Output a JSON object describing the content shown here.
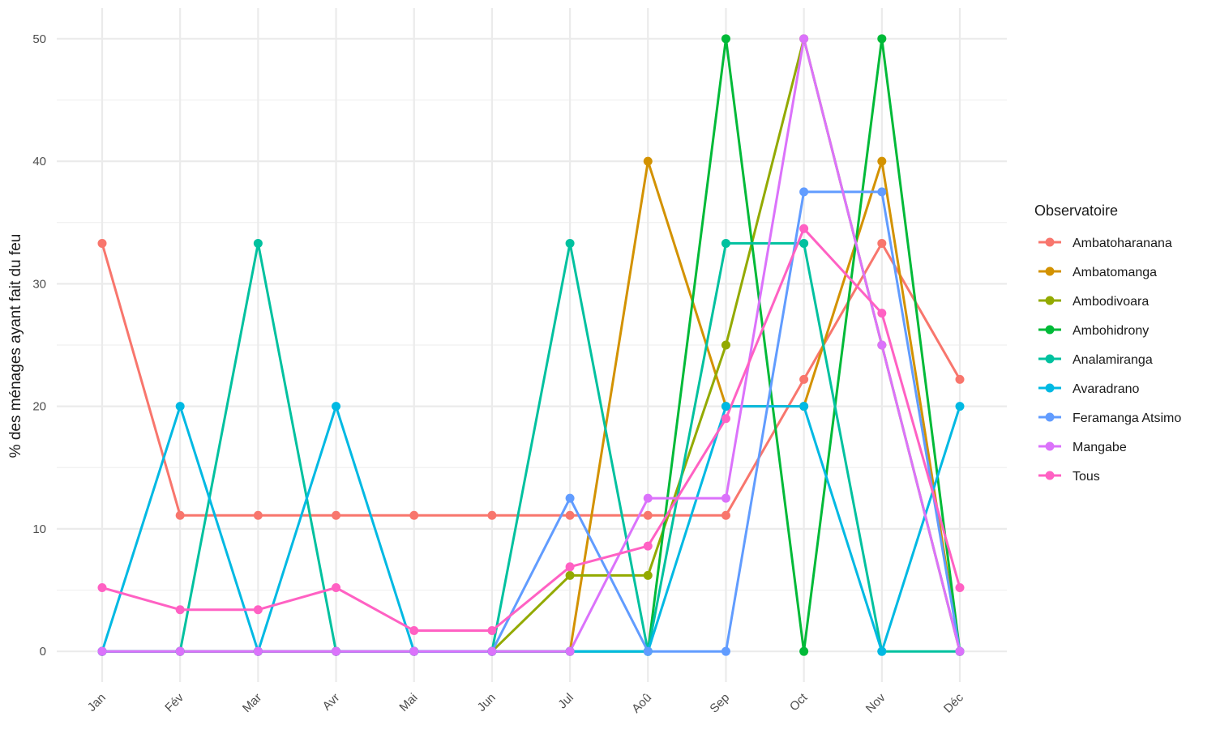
{
  "chart_data": {
    "type": "line",
    "title": "",
    "xlabel": "",
    "ylabel": "% des ménages ayant fait du feu",
    "categories": [
      "Jan",
      "Fév",
      "Mar",
      "Avr",
      "Mai",
      "Jun",
      "Jul",
      "Aoû",
      "Sep",
      "Oct",
      "Nov",
      "Déc"
    ],
    "ylim": [
      -2.5,
      52.5
    ],
    "yticks": [
      0,
      10,
      20,
      30,
      40,
      50
    ],
    "grid": true,
    "legend": {
      "title": "Observatoire",
      "position": "right"
    },
    "series": [
      {
        "name": "Ambatoharanana",
        "color": "#F8766D",
        "values": [
          33.3,
          11.1,
          11.1,
          11.1,
          11.1,
          11.1,
          11.1,
          11.1,
          11.1,
          22.2,
          33.3,
          22.2
        ]
      },
      {
        "name": "Ambatomanga",
        "color": "#D39200",
        "values": [
          0,
          0,
          0,
          0,
          0,
          0,
          0,
          40,
          20,
          20,
          40,
          0
        ]
      },
      {
        "name": "Ambodivoara",
        "color": "#93AA00",
        "values": [
          0,
          0,
          0,
          0,
          0,
          0,
          6.2,
          6.2,
          25,
          50,
          25,
          0
        ]
      },
      {
        "name": "Ambohidrony",
        "color": "#00BA38",
        "values": [
          0,
          0,
          0,
          0,
          0,
          0,
          0,
          0,
          50,
          0,
          50,
          0
        ]
      },
      {
        "name": "Analamiranga",
        "color": "#00C19F",
        "values": [
          0,
          0,
          33.3,
          0,
          0,
          0,
          33.3,
          0,
          33.3,
          33.3,
          0,
          0
        ]
      },
      {
        "name": "Avaradrano",
        "color": "#00B9E3",
        "values": [
          0,
          20,
          0,
          20,
          0,
          0,
          0,
          0,
          20,
          20,
          0,
          20
        ]
      },
      {
        "name": "Feramanga Atsimo",
        "color": "#619CFF",
        "values": [
          0,
          0,
          0,
          0,
          0,
          0,
          12.5,
          0,
          0,
          37.5,
          37.5,
          0
        ]
      },
      {
        "name": "Mangabe",
        "color": "#DB72FB",
        "values": [
          0,
          0,
          0,
          0,
          0,
          0,
          0,
          12.5,
          12.5,
          50,
          25,
          0
        ]
      },
      {
        "name": "Tous",
        "color": "#FF61C3",
        "values": [
          5.2,
          3.4,
          3.4,
          5.2,
          1.7,
          1.7,
          6.9,
          8.6,
          19,
          34.5,
          27.6,
          5.2
        ]
      }
    ]
  }
}
